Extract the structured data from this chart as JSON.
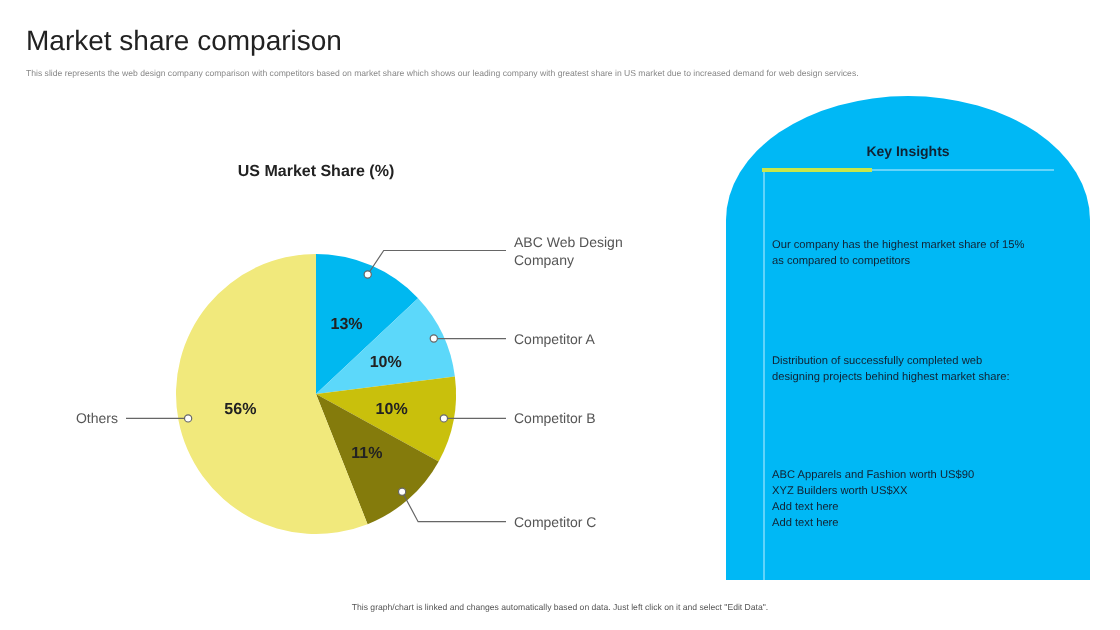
{
  "chart_data": {
    "type": "pie",
    "title": "US Market Share (%)",
    "categories": [
      "ABC Web Design Company",
      "Competitor A",
      "Competitor B",
      "Competitor C",
      "Others"
    ],
    "values": [
      13,
      10,
      10,
      11,
      56
    ],
    "colors": [
      "#00b8f0",
      "#5cd8fa",
      "#c9c00c",
      "#847b0c",
      "#f1e97c"
    ],
    "value_labels": [
      "13%",
      "10%",
      "10%",
      "11%",
      "56%"
    ],
    "annotations": [
      "Market share comparison",
      "This slide represents the web design company comparison with competitors based on market share which shows our leading company with greatest share in US market due to increased demand for web design services.",
      "Key Insights",
      "Our company has the highest market share of 15% as compared to competitors",
      "Distribution of successfully completed web designing projects behind highest market share:",
      "ABC Apparels and Fashion worth US$90",
      "XYZ Builders worth US$XX",
      "Add text here",
      "Add text here",
      "This graph/chart is linked and changes automatically based on data. Just left click on it and select \"Edit Data\"."
    ]
  }
}
